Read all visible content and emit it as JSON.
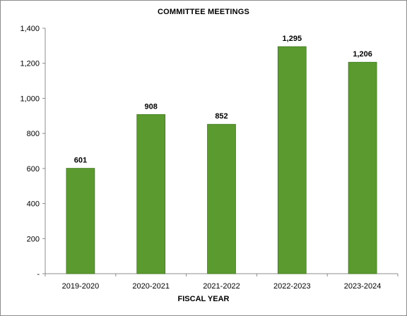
{
  "chart_data": {
    "type": "bar",
    "title": "COMMITTEE  MEETINGS",
    "xlabel": "FISCAL YEAR",
    "ylabel": "",
    "categories": [
      "2019-2020",
      "2020-2021",
      "2021-2022",
      "2022-2023",
      "2023-2024"
    ],
    "values": [
      601,
      908,
      852,
      1295,
      1206
    ],
    "data_labels": [
      "601",
      "908",
      "852",
      "1,295",
      "1,206"
    ],
    "ylim": [
      0,
      1400
    ],
    "yticks": [
      0,
      200,
      400,
      600,
      800,
      1000,
      1200,
      1400
    ],
    "ytick_labels": [
      "-",
      "200",
      "400",
      "600",
      "800",
      "1,000",
      "1,200",
      "1,400"
    ],
    "grid": false,
    "legend": "none",
    "bar_color": "#5a9a2e"
  }
}
